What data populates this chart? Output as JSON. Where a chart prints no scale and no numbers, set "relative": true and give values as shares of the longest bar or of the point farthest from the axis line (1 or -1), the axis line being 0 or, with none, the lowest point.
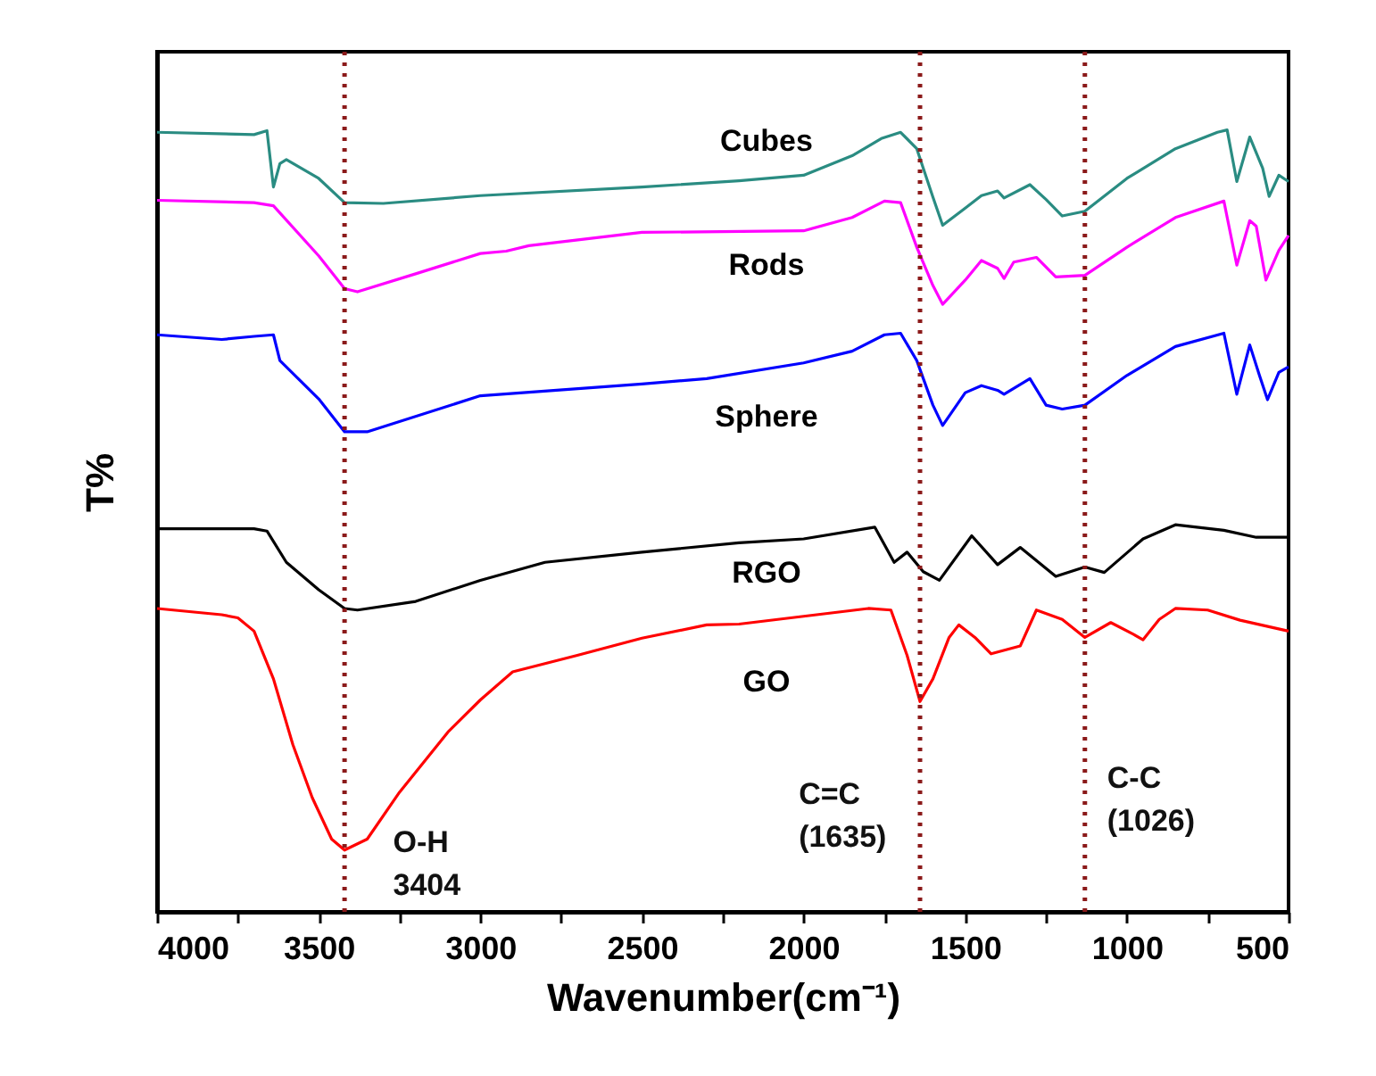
{
  "chart_data": {
    "type": "line",
    "relative": true,
    "xlabel": "Wavenumber(cm⁻¹)",
    "ylabel": "T%",
    "xlim": [
      4000,
      500
    ],
    "xticks": [
      4000,
      {
        "value": 3750,
        "label": null
      },
      3500,
      {
        "value": 3250,
        "label": null
      },
      3000,
      {
        "value": 2750,
        "label": null
      },
      2500,
      {
        "value": 2250,
        "label": null
      },
      2000,
      {
        "value": 1750,
        "label": null
      },
      1500,
      {
        "value": 1250,
        "label": null
      },
      1000,
      {
        "value": 750,
        "label": null
      },
      500
    ],
    "grid": false,
    "legend": false,
    "line_style": "solid",
    "series": [
      {
        "name": "Cubes",
        "color": "#2a8c82",
        "x": [
          4000,
          3700,
          3660,
          3640,
          3620,
          3600,
          3500,
          3420,
          3300,
          3000,
          2500,
          2200,
          2000,
          1850,
          1760,
          1700,
          1650,
          1600,
          1570,
          1500,
          1450,
          1400,
          1380,
          1300,
          1250,
          1200,
          1130,
          1000,
          850,
          720,
          690,
          660,
          620,
          580,
          560,
          530,
          500
        ],
        "values": [
          0.997,
          0.994,
          0.999,
          0.927,
          0.957,
          0.962,
          0.938,
          0.907,
          0.906,
          0.916,
          0.927,
          0.935,
          0.942,
          0.967,
          0.989,
          0.997,
          0.976,
          0.914,
          0.878,
          0.9,
          0.916,
          0.922,
          0.913,
          0.93,
          0.911,
          0.89,
          0.896,
          0.938,
          0.976,
          0.997,
          1,
          0.934,
          0.991,
          0.951,
          0.915,
          0.942,
          0.934
        ]
      },
      {
        "name": "Rods",
        "color": "#ff00ff",
        "x": [
          4000,
          3700,
          3640,
          3500,
          3420,
          3380,
          3200,
          3000,
          2920,
          2850,
          2500,
          2000,
          1850,
          1750,
          1700,
          1650,
          1600,
          1570,
          1500,
          1450,
          1400,
          1380,
          1350,
          1280,
          1220,
          1130,
          1000,
          850,
          700,
          660,
          620,
          600,
          570,
          530,
          500
        ],
        "values": [
          0.91,
          0.907,
          0.903,
          0.839,
          0.797,
          0.793,
          0.816,
          0.842,
          0.845,
          0.852,
          0.869,
          0.871,
          0.888,
          0.909,
          0.907,
          0.85,
          0.801,
          0.777,
          0.808,
          0.833,
          0.823,
          0.81,
          0.831,
          0.837,
          0.812,
          0.814,
          0.85,
          0.888,
          0.909,
          0.827,
          0.884,
          0.877,
          0.808,
          0.846,
          0.865
        ]
      },
      {
        "name": "Sphere",
        "color": "#0000ff",
        "x": [
          4000,
          3800,
          3700,
          3640,
          3620,
          3500,
          3420,
          3350,
          3000,
          2500,
          2300,
          2000,
          1850,
          1750,
          1700,
          1650,
          1600,
          1570,
          1500,
          1450,
          1400,
          1380,
          1300,
          1250,
          1200,
          1130,
          1000,
          850,
          700,
          660,
          620,
          590,
          565,
          530,
          500
        ],
        "values": [
          0.738,
          0.732,
          0.736,
          0.738,
          0.705,
          0.656,
          0.614,
          0.614,
          0.66,
          0.675,
          0.682,
          0.702,
          0.717,
          0.738,
          0.74,
          0.705,
          0.648,
          0.622,
          0.664,
          0.673,
          0.667,
          0.662,
          0.682,
          0.648,
          0.643,
          0.648,
          0.686,
          0.723,
          0.74,
          0.662,
          0.725,
          0.686,
          0.655,
          0.69,
          0.697
        ]
      },
      {
        "name": "RGO",
        "color": "#000000",
        "x": [
          4000,
          3700,
          3660,
          3600,
          3500,
          3420,
          3380,
          3200,
          3000,
          2800,
          2500,
          2200,
          2000,
          1780,
          1720,
          1680,
          1630,
          1580,
          1480,
          1400,
          1330,
          1220,
          1130,
          1070,
          950,
          850,
          700,
          600,
          500
        ],
        "values": [
          0.49,
          0.49,
          0.487,
          0.447,
          0.412,
          0.388,
          0.386,
          0.397,
          0.424,
          0.447,
          0.46,
          0.472,
          0.477,
          0.492,
          0.447,
          0.46,
          0.435,
          0.424,
          0.481,
          0.444,
          0.466,
          0.429,
          0.441,
          0.434,
          0.477,
          0.495,
          0.488,
          0.479,
          0.479
        ]
      },
      {
        "name": "GO",
        "color": "#ff0000",
        "x": [
          4000,
          3800,
          3750,
          3700,
          3640,
          3580,
          3520,
          3460,
          3420,
          3350,
          3250,
          3100,
          3000,
          2900,
          2700,
          2500,
          2300,
          2200,
          2000,
          1800,
          1730,
          1680,
          1640,
          1600,
          1550,
          1520,
          1470,
          1420,
          1330,
          1280,
          1200,
          1130,
          1050,
          980,
          950,
          900,
          850,
          750,
          650,
          500
        ],
        "values": [
          0.388,
          0.38,
          0.376,
          0.359,
          0.298,
          0.214,
          0.146,
          0.093,
          0.079,
          0.093,
          0.153,
          0.23,
          0.271,
          0.307,
          0.328,
          0.35,
          0.367,
          0.368,
          0.378,
          0.388,
          0.386,
          0.328,
          0.269,
          0.298,
          0.351,
          0.367,
          0.351,
          0.33,
          0.34,
          0.386,
          0.374,
          0.351,
          0.37,
          0.355,
          0.348,
          0.374,
          0.388,
          0.386,
          0.373,
          0.359
        ]
      }
    ],
    "ref_lines": [
      {
        "axis": "x",
        "value": 3420,
        "color": "#8b1a1a",
        "line_style": "dotted"
      },
      {
        "axis": "x",
        "value": 1640,
        "color": "#8b1a1a",
        "line_style": "dotted"
      },
      {
        "axis": "x",
        "value": 1130,
        "color": "#8b1a1a",
        "line_style": "dotted"
      }
    ],
    "annotations": [
      "O-H\n3404",
      "C=C\n(1635)",
      "C-C\n(1026)"
    ]
  }
}
